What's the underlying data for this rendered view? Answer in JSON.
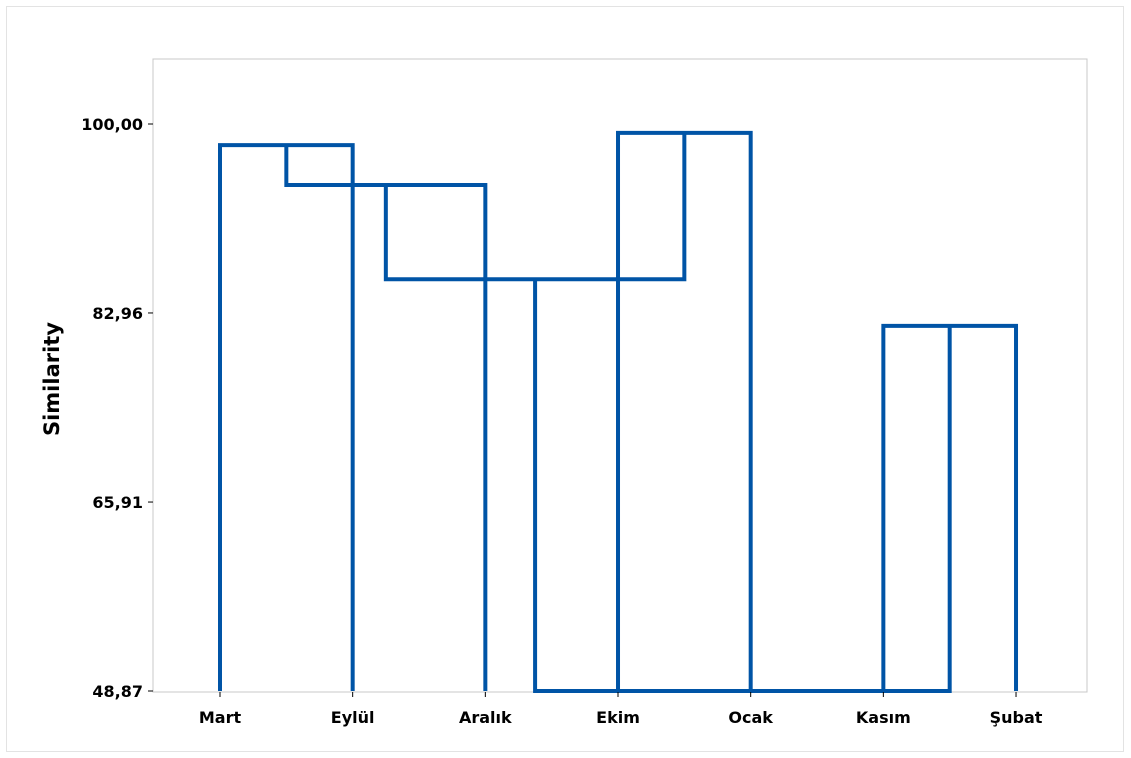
{
  "chart_data": {
    "type": "dendrogram",
    "ylabel": "Similarity",
    "y_ticks": [
      "48,87",
      "65,91",
      "82,96",
      "100,00"
    ],
    "y_tick_values": [
      48.87,
      65.91,
      82.96,
      100.0
    ],
    "ylim": [
      100.0,
      48.87
    ],
    "observations": [
      "Mart",
      "Eylül",
      "Aralık",
      "Ekim",
      "Ocak",
      "Kasım",
      "Şubat"
    ],
    "merges": [
      {
        "left": "Mart",
        "right": "Eylül",
        "similarity": 98.1
      },
      {
        "left": "Ekim",
        "right": "Ocak",
        "similarity": 99.2
      },
      {
        "left": "Mart+Eylül",
        "right": "Aralık",
        "similarity": 94.5
      },
      {
        "left": "Mart+Eylül+Aralık",
        "right": "Ekim+Ocak",
        "similarity": 86.0
      },
      {
        "left": "Kasım",
        "right": "Şubat",
        "similarity": 81.8
      },
      {
        "left": "Mart+Eylül+Aralık+Ekim+Ocak",
        "right": "Kasım+Şubat",
        "similarity": 48.87
      }
    ],
    "colors": {
      "branch": "#0054a6",
      "plot_border": "#c8c8c8",
      "frame_border": "#e3e3e3"
    },
    "grid": false,
    "legend": "none"
  }
}
